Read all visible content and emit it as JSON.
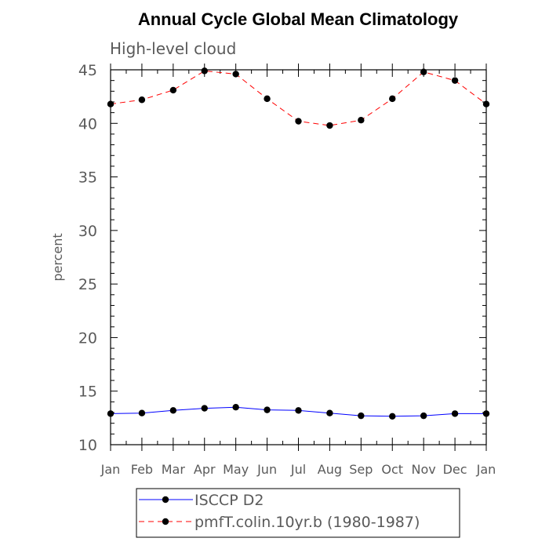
{
  "chart_data": {
    "type": "line",
    "title": "Annual Cycle Global Mean Climatology",
    "subtitle": "High-level cloud",
    "ylabel": "percent",
    "xlabel": "",
    "categories": [
      "Jan",
      "Feb",
      "Mar",
      "Apr",
      "May",
      "Jun",
      "Jul",
      "Aug",
      "Sep",
      "Oct",
      "Nov",
      "Dec",
      "Jan"
    ],
    "ylim": [
      10,
      45
    ],
    "yticks": [
      "10",
      "15",
      "20",
      "25",
      "30",
      "35",
      "40",
      "45"
    ],
    "series": [
      {
        "name": "ISCCP D2",
        "color": "#0000ff",
        "dash": "solid",
        "marker": "filled-circle",
        "values": [
          12.9,
          12.95,
          13.2,
          13.4,
          13.5,
          13.25,
          13.2,
          12.95,
          12.7,
          12.65,
          12.7,
          12.9,
          12.9
        ]
      },
      {
        "name": "pmfT.colin.10yr.b (1980-1987)",
        "color": "#ff0000",
        "dash": "dashed",
        "marker": "filled-circle",
        "values": [
          41.8,
          42.2,
          43.1,
          44.9,
          44.6,
          42.3,
          40.2,
          39.8,
          40.3,
          42.3,
          44.8,
          44.0,
          41.8
        ]
      }
    ],
    "legend_position": "bottom-center",
    "grid": false
  }
}
